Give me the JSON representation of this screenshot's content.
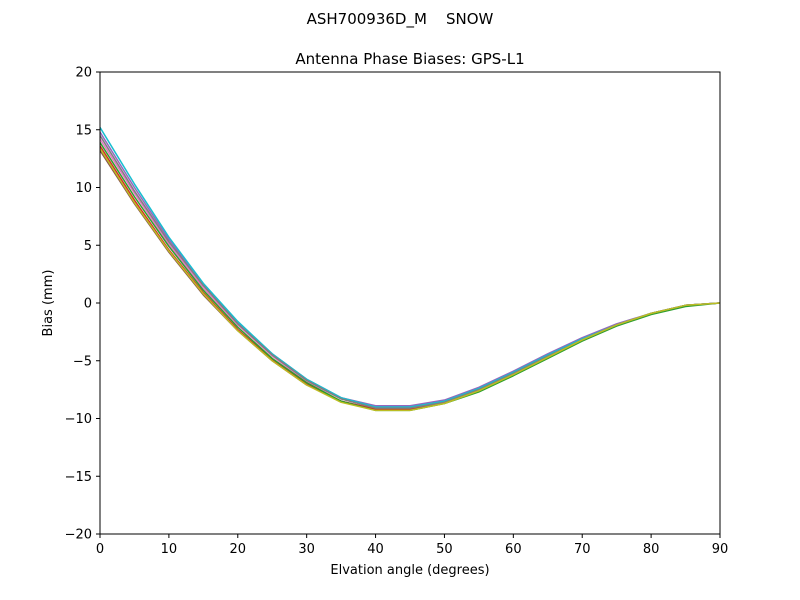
{
  "figure": {
    "suptitle": "ASH700936D_M    SNOW"
  },
  "chart_data": {
    "type": "line",
    "title": "Antenna Phase Biases: GPS-L1",
    "xlabel": "Elvation angle (degrees)",
    "ylabel": "Bias (mm)",
    "xlim": [
      0,
      90
    ],
    "ylim": [
      -20,
      20
    ],
    "xticks": [
      0,
      10,
      20,
      30,
      40,
      50,
      60,
      70,
      80,
      90
    ],
    "yticks": [
      -20,
      -15,
      -10,
      -5,
      0,
      5,
      10,
      15,
      20
    ],
    "xtick_labels": [
      "0",
      "10",
      "20",
      "30",
      "40",
      "50",
      "60",
      "70",
      "80",
      "90"
    ],
    "ytick_labels": [
      "−20",
      "−15",
      "−10",
      "−5",
      "0",
      "5",
      "10",
      "15",
      "20"
    ],
    "grid": false,
    "x": [
      0,
      5,
      10,
      15,
      20,
      25,
      30,
      35,
      40,
      45,
      50,
      55,
      60,
      65,
      70,
      75,
      80,
      85,
      90
    ],
    "series": [
      {
        "color": "#8c564b",
        "values": [
          13.2,
          8.6,
          4.4,
          0.7,
          -2.4,
          -5.0,
          -7.1,
          -8.5,
          -9.2,
          -9.2,
          -8.6,
          -7.5,
          -6.1,
          -4.6,
          -3.2,
          -1.9,
          -0.9,
          -0.2,
          0.0
        ]
      },
      {
        "color": "#d62728",
        "values": [
          13.6,
          8.9,
          4.6,
          0.9,
          -2.3,
          -4.9,
          -7.0,
          -8.5,
          -9.2,
          -9.2,
          -8.6,
          -7.5,
          -6.1,
          -4.6,
          -3.2,
          -1.9,
          -0.9,
          -0.2,
          0.0
        ]
      },
      {
        "color": "#e377c2",
        "values": [
          14.2,
          9.5,
          5.1,
          1.3,
          -1.9,
          -4.6,
          -6.8,
          -8.3,
          -9.0,
          -9.0,
          -8.5,
          -7.4,
          -6.0,
          -4.5,
          -3.1,
          -1.9,
          -0.9,
          -0.2,
          0.0
        ]
      },
      {
        "color": "#9467bd",
        "values": [
          14.8,
          10.0,
          5.5,
          1.6,
          -1.7,
          -4.4,
          -6.6,
          -8.2,
          -8.9,
          -8.9,
          -8.4,
          -7.3,
          -5.9,
          -4.4,
          -3.0,
          -1.8,
          -0.9,
          -0.2,
          0.0
        ]
      },
      {
        "color": "#17becf",
        "values": [
          15.2,
          10.3,
          5.7,
          1.7,
          -1.6,
          -4.4,
          -6.6,
          -8.2,
          -9.0,
          -9.0,
          -8.5,
          -7.4,
          -6.0,
          -4.5,
          -3.1,
          -1.9,
          -0.9,
          -0.2,
          0.0
        ]
      },
      {
        "color": "#2ca02c",
        "values": [
          13.9,
          9.2,
          4.9,
          1.1,
          -2.1,
          -4.8,
          -6.9,
          -8.5,
          -9.3,
          -9.3,
          -8.7,
          -7.7,
          -6.3,
          -4.8,
          -3.3,
          -2.0,
          -1.0,
          -0.3,
          0.0
        ]
      },
      {
        "color": "#7f7f7f",
        "values": [
          14.5,
          9.7,
          5.3,
          1.5,
          -1.8,
          -4.5,
          -6.7,
          -8.3,
          -9.1,
          -9.1,
          -8.6,
          -7.5,
          -6.1,
          -4.6,
          -3.2,
          -1.9,
          -0.9,
          -0.2,
          0.0
        ]
      },
      {
        "color": "#bcbd22",
        "values": [
          13.4,
          8.7,
          4.5,
          0.8,
          -2.4,
          -5.0,
          -7.1,
          -8.6,
          -9.3,
          -9.3,
          -8.7,
          -7.6,
          -6.2,
          -4.7,
          -3.2,
          -1.9,
          -0.9,
          -0.2,
          0.0
        ]
      }
    ]
  }
}
